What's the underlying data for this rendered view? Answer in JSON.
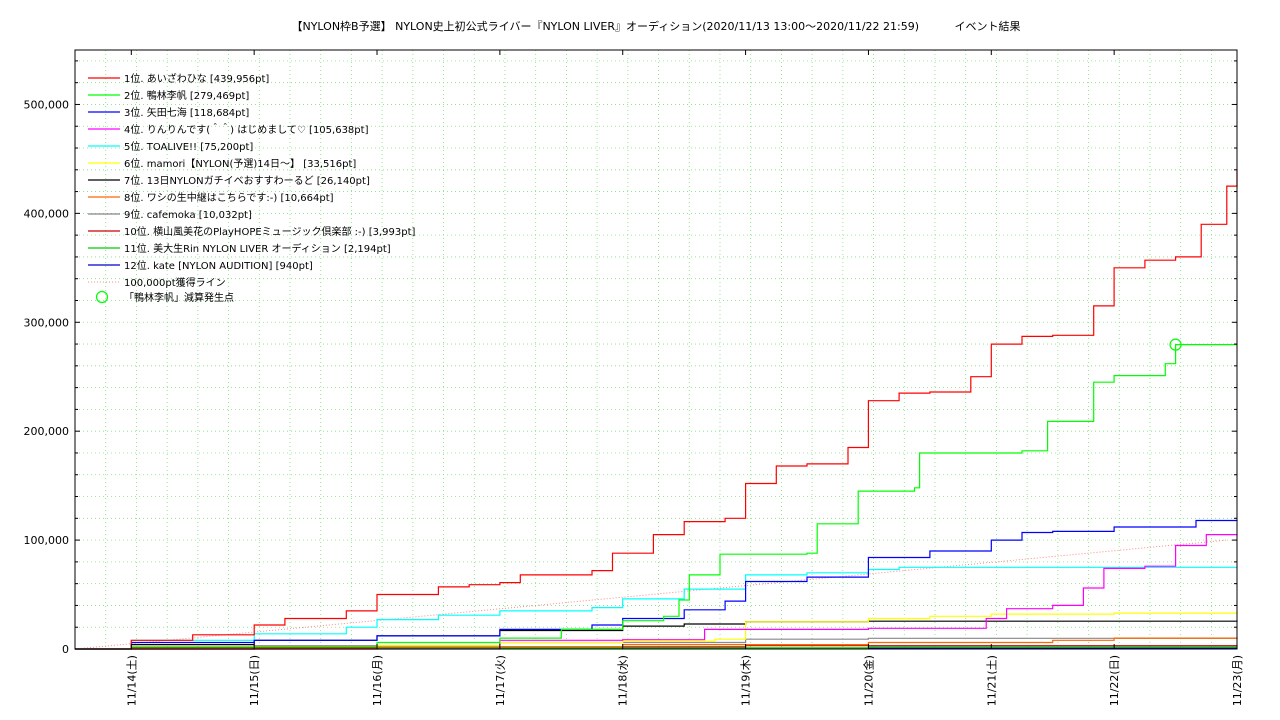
{
  "chart_data": {
    "type": "line",
    "title": "【NYLON枠B予選】 NYLON史上初公式ライバー『NYLON LIVER』オーディション(2020/11/13 13:00〜2020/11/22 21:59)",
    "title_suffix": "イベント結果",
    "xlabel": "",
    "ylabel": "",
    "grid": true,
    "legend_position": "top-left",
    "x_start": "2020-11-13 13:00",
    "x_end": "2020-11-23 00:00",
    "xlim": [
      "2020-11-13 13:00",
      "2020-11-23 00:00"
    ],
    "ylim": [
      0,
      550000
    ],
    "y_ticks": [
      {
        "value": 0,
        "label": "0"
      },
      {
        "value": 100000,
        "label": "100,000"
      },
      {
        "value": 200000,
        "label": "200,000"
      },
      {
        "value": 300000,
        "label": "300,000"
      },
      {
        "value": 400000,
        "label": "400,000"
      },
      {
        "value": 500000,
        "label": "500,000"
      }
    ],
    "x_ticks": [
      {
        "date": "2020-11-14 00:00",
        "label": "11/14(土)"
      },
      {
        "date": "2020-11-15 00:00",
        "label": "11/15(日)"
      },
      {
        "date": "2020-11-16 00:00",
        "label": "11/16(月)"
      },
      {
        "date": "2020-11-17 00:00",
        "label": "11/17(火)"
      },
      {
        "date": "2020-11-18 00:00",
        "label": "11/18(水)"
      },
      {
        "date": "2020-11-19 00:00",
        "label": "11/19(木)"
      },
      {
        "date": "2020-11-20 00:00",
        "label": "11/20(金)"
      },
      {
        "date": "2020-11-21 00:00",
        "label": "11/21(土)"
      },
      {
        "date": "2020-11-22 00:00",
        "label": "11/22(日)"
      },
      {
        "date": "2020-11-23 00:00",
        "label": "11/23(月)"
      }
    ],
    "series": [
      {
        "name": "1位. あいざわひな [439,956pt]",
        "color": "#ff0000",
        "points": [
          [
            "2020-11-13 13:00",
            0
          ],
          [
            "2020-11-14 00:00",
            8000
          ],
          [
            "2020-11-14 12:00",
            13000
          ],
          [
            "2020-11-15 00:00",
            22000
          ],
          [
            "2020-11-15 06:00",
            28000
          ],
          [
            "2020-11-15 18:00",
            35000
          ],
          [
            "2020-11-16 00:00",
            50000
          ],
          [
            "2020-11-16 12:00",
            57000
          ],
          [
            "2020-11-16 18:00",
            59000
          ],
          [
            "2020-11-17 00:00",
            61000
          ],
          [
            "2020-11-17 04:00",
            68000
          ],
          [
            "2020-11-17 18:00",
            72000
          ],
          [
            "2020-11-17 22:00",
            88000
          ],
          [
            "2020-11-18 06:00",
            105000
          ],
          [
            "2020-11-18 12:00",
            117000
          ],
          [
            "2020-11-18 20:00",
            120000
          ],
          [
            "2020-11-19 00:00",
            152000
          ],
          [
            "2020-11-19 06:00",
            168000
          ],
          [
            "2020-11-19 12:00",
            170000
          ],
          [
            "2020-11-19 20:00",
            185000
          ],
          [
            "2020-11-20 00:00",
            228000
          ],
          [
            "2020-11-20 06:00",
            235000
          ],
          [
            "2020-11-20 12:00",
            236000
          ],
          [
            "2020-11-20 20:00",
            250000
          ],
          [
            "2020-11-21 00:00",
            280000
          ],
          [
            "2020-11-21 06:00",
            287000
          ],
          [
            "2020-11-21 12:00",
            288000
          ],
          [
            "2020-11-21 20:00",
            315000
          ],
          [
            "2020-11-22 00:00",
            350000
          ],
          [
            "2020-11-22 06:00",
            357000
          ],
          [
            "2020-11-22 12:00",
            360000
          ],
          [
            "2020-11-22 17:00",
            390000
          ],
          [
            "2020-11-22 22:00",
            425000
          ],
          [
            "2020-11-23 00:00",
            439956
          ]
        ]
      },
      {
        "name": "2位. 鴨林李帆 [279,469pt]",
        "color": "#00ff00",
        "points": [
          [
            "2020-11-13 13:00",
            0
          ],
          [
            "2020-11-14 00:00",
            2000
          ],
          [
            "2020-11-16 00:00",
            6000
          ],
          [
            "2020-11-17 00:00",
            10000
          ],
          [
            "2020-11-17 12:00",
            18000
          ],
          [
            "2020-11-18 00:00",
            26000
          ],
          [
            "2020-11-18 08:00",
            30000
          ],
          [
            "2020-11-18 11:00",
            45000
          ],
          [
            "2020-11-18 13:00",
            68000
          ],
          [
            "2020-11-18 19:00",
            87000
          ],
          [
            "2020-11-19 12:00",
            88000
          ],
          [
            "2020-11-19 14:00",
            115000
          ],
          [
            "2020-11-19 22:00",
            145000
          ],
          [
            "2020-11-20 09:00",
            148000
          ],
          [
            "2020-11-20 10:00",
            180000
          ],
          [
            "2020-11-21 06:00",
            182000
          ],
          [
            "2020-11-21 11:00",
            209000
          ],
          [
            "2020-11-21 20:00",
            245000
          ],
          [
            "2020-11-22 00:00",
            251000
          ],
          [
            "2020-11-22 10:00",
            262000
          ],
          [
            "2020-11-22 12:00",
            279469
          ],
          [
            "2020-11-23 00:00",
            279469
          ]
        ]
      },
      {
        "name": "3位. 矢田七海 [118,684pt]",
        "color": "#0000ff",
        "points": [
          [
            "2020-11-13 13:00",
            0
          ],
          [
            "2020-11-14 00:00",
            6000
          ],
          [
            "2020-11-15 00:00",
            8000
          ],
          [
            "2020-11-16 00:00",
            12000
          ],
          [
            "2020-11-17 00:00",
            18000
          ],
          [
            "2020-11-17 18:00",
            22000
          ],
          [
            "2020-11-18 00:00",
            28000
          ],
          [
            "2020-11-18 12:00",
            36000
          ],
          [
            "2020-11-18 20:00",
            44000
          ],
          [
            "2020-11-19 00:00",
            62000
          ],
          [
            "2020-11-19 12:00",
            66000
          ],
          [
            "2020-11-20 00:00",
            84000
          ],
          [
            "2020-11-20 12:00",
            90000
          ],
          [
            "2020-11-21 00:00",
            100000
          ],
          [
            "2020-11-21 06:00",
            107000
          ],
          [
            "2020-11-21 12:00",
            108000
          ],
          [
            "2020-11-22 00:00",
            112000
          ],
          [
            "2020-11-22 16:00",
            118000
          ],
          [
            "2020-11-23 00:00",
            118684
          ]
        ]
      },
      {
        "name": "4位. りんりんです(＾＾) はじめまして♡ [105,638pt]",
        "color": "#ff00ff",
        "points": [
          [
            "2020-11-13 13:00",
            0
          ],
          [
            "2020-11-17 00:00",
            8000
          ],
          [
            "2020-11-18 00:00",
            8500
          ],
          [
            "2020-11-18 16:00",
            18000
          ],
          [
            "2020-11-20 00:00",
            19000
          ],
          [
            "2020-11-20 23:00",
            28000
          ],
          [
            "2020-11-21 03:00",
            37000
          ],
          [
            "2020-11-21 12:00",
            40000
          ],
          [
            "2020-11-21 18:00",
            56000
          ],
          [
            "2020-11-21 22:00",
            74000
          ],
          [
            "2020-11-22 06:00",
            76000
          ],
          [
            "2020-11-22 12:00",
            95000
          ],
          [
            "2020-11-22 18:00",
            105000
          ],
          [
            "2020-11-23 00:00",
            105638
          ]
        ]
      },
      {
        "name": "5位. TOALIVE!! [75,200pt]",
        "color": "#00ffff",
        "points": [
          [
            "2020-11-13 13:00",
            0
          ],
          [
            "2020-11-14 00:00",
            8000
          ],
          [
            "2020-11-15 00:00",
            14000
          ],
          [
            "2020-11-15 18:00",
            20000
          ],
          [
            "2020-11-16 00:00",
            27000
          ],
          [
            "2020-11-16 12:00",
            31000
          ],
          [
            "2020-11-17 00:00",
            35000
          ],
          [
            "2020-11-17 18:00",
            38000
          ],
          [
            "2020-11-18 00:00",
            46000
          ],
          [
            "2020-11-18 12:00",
            55000
          ],
          [
            "2020-11-19 00:00",
            68000
          ],
          [
            "2020-11-19 12:00",
            70000
          ],
          [
            "2020-11-20 00:00",
            73000
          ],
          [
            "2020-11-20 06:00",
            75000
          ],
          [
            "2020-11-23 00:00",
            75200
          ]
        ]
      },
      {
        "name": "6位. mamori【NYLON(予選)14日〜】 [33,516pt]",
        "color": "#ffff00",
        "points": [
          [
            "2020-11-13 13:00",
            0
          ],
          [
            "2020-11-16 00:00",
            3000
          ],
          [
            "2020-11-17 00:00",
            6000
          ],
          [
            "2020-11-18 00:00",
            7000
          ],
          [
            "2020-11-18 18:00",
            9000
          ],
          [
            "2020-11-19 00:00",
            25000
          ],
          [
            "2020-11-20 00:00",
            28000
          ],
          [
            "2020-11-20 12:00",
            30000
          ],
          [
            "2020-11-21 00:00",
            32000
          ],
          [
            "2020-11-22 00:00",
            33000
          ],
          [
            "2020-11-23 00:00",
            33516
          ]
        ]
      },
      {
        "name": "7位. 13日NYLONガチイベおすすわーるど [26,140pt]",
        "color": "#000000",
        "points": [
          [
            "2020-11-13 13:00",
            0
          ],
          [
            "2020-11-14 00:00",
            4000
          ],
          [
            "2020-11-15 00:00",
            8000
          ],
          [
            "2020-11-16 00:00",
            12000
          ],
          [
            "2020-11-17 00:00",
            17000
          ],
          [
            "2020-11-18 00:00",
            21000
          ],
          [
            "2020-11-18 12:00",
            23000
          ],
          [
            "2020-11-19 00:00",
            25000
          ],
          [
            "2020-11-20 00:00",
            25500
          ],
          [
            "2020-11-23 00:00",
            26140
          ]
        ]
      },
      {
        "name": "8位. ワシの生中継はこちらです:-) [10,664pt]",
        "color": "#ff6600",
        "points": [
          [
            "2020-11-13 13:00",
            0
          ],
          [
            "2020-11-15 00:00",
            2000
          ],
          [
            "2020-11-18 00:00",
            4000
          ],
          [
            "2020-11-20 00:00",
            6000
          ],
          [
            "2020-11-21 12:00",
            8000
          ],
          [
            "2020-11-22 00:00",
            10000
          ],
          [
            "2020-11-23 00:00",
            10664
          ]
        ]
      },
      {
        "name": "9位. cafemoka [10,032pt]",
        "color": "#888888",
        "points": [
          [
            "2020-11-13 13:00",
            0
          ],
          [
            "2020-11-15 00:00",
            3000
          ],
          [
            "2020-11-17 00:00",
            6000
          ],
          [
            "2020-11-19 00:00",
            9000
          ],
          [
            "2020-11-20 00:00",
            9800
          ],
          [
            "2020-11-23 00:00",
            10032
          ]
        ]
      },
      {
        "name": "10位. 横山風美花のPlayHOPEミュージック倶楽部 :-) [3,993pt]",
        "color": "#cc0000",
        "points": [
          [
            "2020-11-13 13:00",
            0
          ],
          [
            "2020-11-14 00:00",
            1000
          ],
          [
            "2020-11-16 00:00",
            2000
          ],
          [
            "2020-11-19 00:00",
            3000
          ],
          [
            "2020-11-23 00:00",
            3993
          ]
        ]
      },
      {
        "name": "11位. 美大生Rin NYLON LIVER オーディション [2,194pt]",
        "color": "#00cc00",
        "points": [
          [
            "2020-11-13 13:00",
            0
          ],
          [
            "2020-11-16 00:00",
            1000
          ],
          [
            "2020-11-20 00:00",
            1800
          ],
          [
            "2020-11-23 00:00",
            2194
          ]
        ]
      },
      {
        "name": "12位. kate [NYLON AUDITION] [940pt]",
        "color": "#0000cc",
        "points": [
          [
            "2020-11-13 13:00",
            0
          ],
          [
            "2020-11-15 00:00",
            400
          ],
          [
            "2020-11-19 00:00",
            700
          ],
          [
            "2020-11-23 00:00",
            940
          ]
        ]
      }
    ],
    "reference_line": {
      "name": "100,000pt獲得ライン",
      "color": "#ff8888",
      "from": [
        "2020-11-13 13:00",
        0
      ],
      "to": [
        "2020-11-22 22:00",
        100000
      ]
    },
    "marker": {
      "name": "「鴨林李帆」減算発生点",
      "color": "#00ff00",
      "point": [
        "2020-11-22 12:00",
        279469
      ]
    }
  }
}
